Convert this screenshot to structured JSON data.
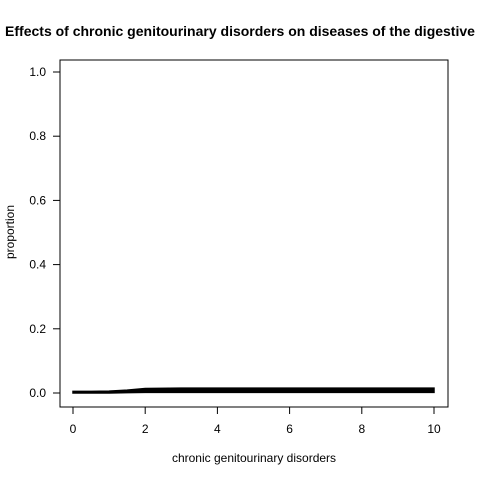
{
  "chart_data": {
    "type": "area",
    "title": "Effects of chronic genitourinary disorders on diseases of the digestive",
    "xlabel": "chronic genitourinary disorders",
    "ylabel": "proportion",
    "xlim": [
      0,
      10
    ],
    "ylim": [
      0,
      1
    ],
    "xticks": [
      "0",
      "2",
      "4",
      "6",
      "8",
      "10"
    ],
    "yticks": [
      "0.0",
      "0.2",
      "0.4",
      "0.6",
      "0.8",
      "1.0"
    ],
    "grid": false,
    "series": [
      {
        "x": [
          0,
          0.5,
          1,
          1.5,
          2,
          3,
          4,
          5,
          6,
          7,
          8,
          9,
          10
        ],
        "upper": [
          0.005,
          0.005,
          0.006,
          0.009,
          0.014,
          0.015,
          0.015,
          0.015,
          0.015,
          0.015,
          0.015,
          0.015,
          0.015
        ],
        "lower": [
          0.0,
          0.0,
          0.0,
          0.001,
          0.002,
          0.002,
          0.002,
          0.002,
          0.002,
          0.002,
          0.002,
          0.002,
          0.002
        ],
        "color": "#000000"
      }
    ]
  }
}
